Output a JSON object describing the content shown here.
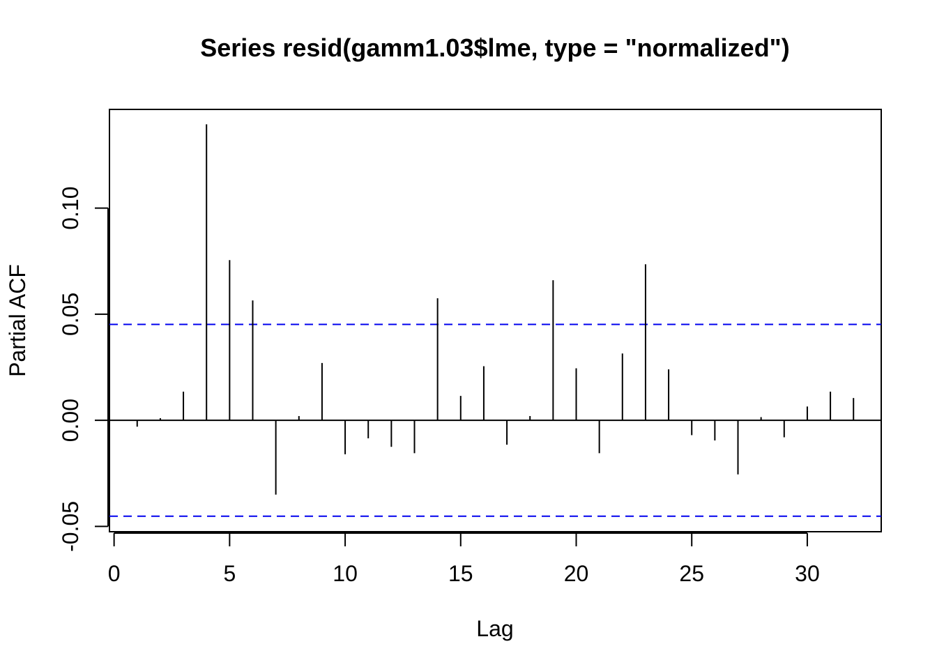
{
  "chart_data": {
    "type": "bar",
    "title": "Series  resid(gamm1.03$lme, type = \"normalized\")",
    "xlabel": "Lag",
    "ylabel": "Partial ACF",
    "xlim": [
      -0.2,
      33.2
    ],
    "ylim": [
      -0.0525,
      0.1465
    ],
    "x_ticks": [
      0,
      5,
      10,
      15,
      20,
      25,
      30
    ],
    "x_tick_labels": [
      "0",
      "5",
      "10",
      "15",
      "20",
      "25",
      "30"
    ],
    "y_ticks": [
      -0.05,
      0.0,
      0.05,
      0.1
    ],
    "y_tick_labels": [
      "-0.05",
      "0.00",
      "0.05",
      "0.10"
    ],
    "lags": [
      1,
      2,
      3,
      4,
      5,
      6,
      7,
      8,
      9,
      10,
      11,
      12,
      13,
      14,
      15,
      16,
      17,
      18,
      19,
      20,
      21,
      22,
      23,
      24,
      25,
      26,
      27,
      28,
      29,
      30,
      31,
      32
    ],
    "values": [
      -0.003,
      0.001,
      0.0135,
      0.1395,
      0.0755,
      0.0565,
      -0.035,
      0.002,
      0.027,
      -0.016,
      -0.0085,
      -0.0125,
      -0.0155,
      0.0575,
      0.0115,
      0.0255,
      -0.0115,
      0.002,
      0.066,
      0.0245,
      -0.0155,
      0.0315,
      0.0735,
      0.024,
      -0.007,
      -0.0095,
      -0.0255,
      0.0015,
      -0.008,
      0.0065,
      0.0135,
      0.0105
    ],
    "confidence_bounds": [
      0.0452,
      -0.0452
    ],
    "colors": {
      "bars": "#000000",
      "bounds": "#0000ee",
      "axes": "#000000",
      "background": "#ffffff"
    }
  }
}
